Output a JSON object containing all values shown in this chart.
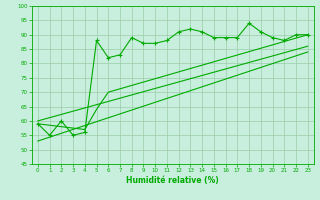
{
  "title": "",
  "xlabel": "Humidité relative (%)",
  "ylabel": "",
  "background_color": "#c8eedd",
  "grid_color": "#99ccaa",
  "line_color": "#00aa00",
  "xlim": [
    -0.5,
    23.5
  ],
  "ylim": [
    45,
    100
  ],
  "yticks": [
    45,
    50,
    55,
    60,
    65,
    70,
    75,
    80,
    85,
    90,
    95,
    100
  ],
  "xticks": [
    0,
    1,
    2,
    3,
    4,
    5,
    6,
    7,
    8,
    9,
    10,
    11,
    12,
    13,
    14,
    15,
    16,
    17,
    18,
    19,
    20,
    21,
    22,
    23
  ],
  "series1_x": [
    0,
    1,
    2,
    3,
    4,
    5,
    6,
    7,
    8,
    9,
    10,
    11,
    12,
    13,
    14,
    15,
    16,
    17,
    18,
    19,
    20,
    21,
    22,
    23
  ],
  "series1_y": [
    59,
    55,
    60,
    55,
    56,
    88,
    82,
    83,
    89,
    87,
    87,
    88,
    91,
    92,
    91,
    89,
    89,
    89,
    94,
    91,
    89,
    88,
    90,
    90
  ],
  "series2_x": [
    0,
    4,
    5,
    6,
    23
  ],
  "series2_y": [
    59,
    57,
    64,
    70,
    90
  ],
  "series3_x": [
    0,
    23
  ],
  "series3_y": [
    60,
    86
  ],
  "series4_x": [
    0,
    23
  ],
  "series4_y": [
    53,
    84
  ]
}
